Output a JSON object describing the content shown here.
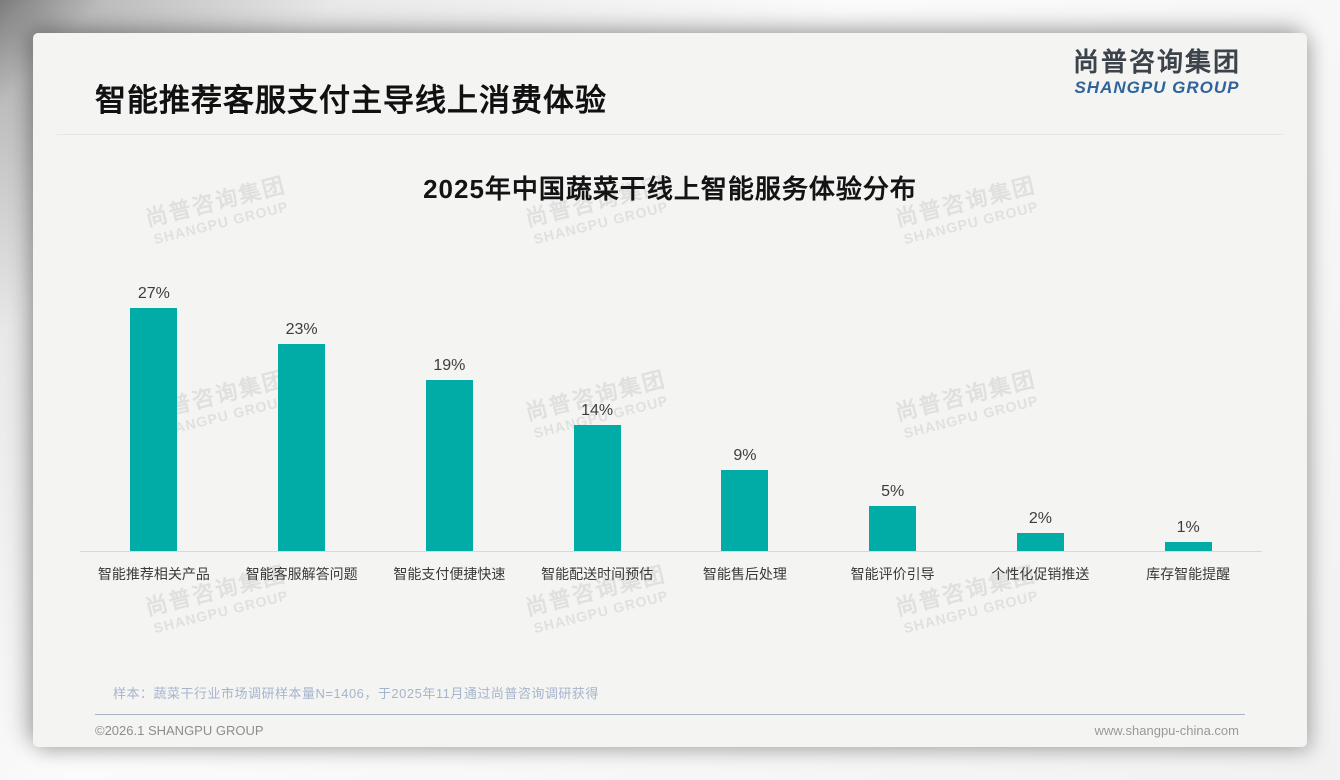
{
  "header": {
    "title": "智能推荐客服支付主导线上消费体验",
    "logo_cn": "尚普咨询集团",
    "logo_en": "SHANGPU GROUP"
  },
  "watermark": {
    "line1": "尚普咨询集团",
    "line2": "SHANGPU GROUP"
  },
  "chart_data": {
    "type": "bar",
    "title": "2025年中国蔬菜干线上智能服务体验分布",
    "categories": [
      "智能推荐相关产品",
      "智能客服解答问题",
      "智能支付便捷快速",
      "智能配送时间预估",
      "智能售后处理",
      "智能评价引导",
      "个性化促销推送",
      "库存智能提醒"
    ],
    "values": [
      27,
      23,
      19,
      14,
      9,
      5,
      2,
      1
    ],
    "unit": "%",
    "bar_color": "#00ACA5",
    "ylim": [
      0,
      30
    ],
    "grid": false,
    "legend": "none",
    "data_labels": true,
    "xlabel": "",
    "ylabel": ""
  },
  "footnote": "样本：蔬菜干行业市场调研样本量N=1406，于2025年11月通过尚普咨询调研获得",
  "footer": {
    "left": "©2026.1 SHANGPU GROUP",
    "right": "www.shangpu-china.com"
  }
}
